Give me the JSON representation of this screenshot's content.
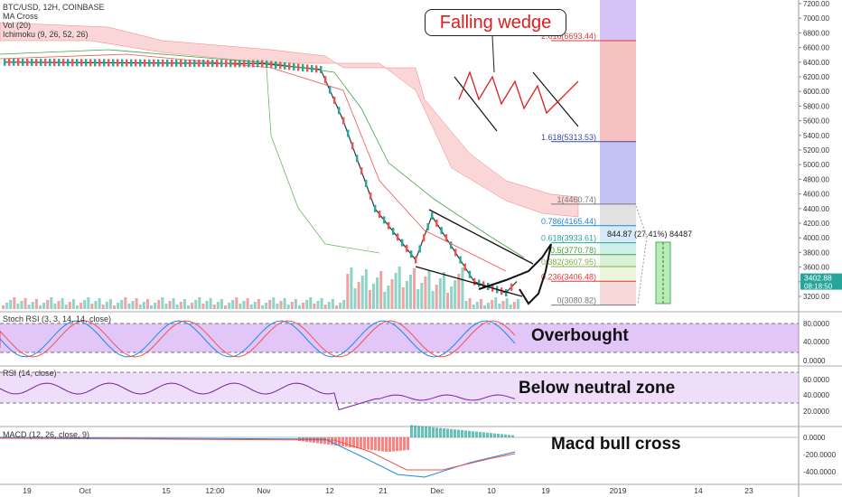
{
  "header": {
    "symbol": "BTC/USD, 12H, COINBASE",
    "ma_cross": "MA Cross",
    "vol": "Vol (20)",
    "ichimoku": "Ichimoku (9, 26, 52, 26)"
  },
  "panes": {
    "stoch_label": "Stoch RSI (3, 3, 14, 14, close)",
    "rsi_label": "RSI (14, close)",
    "macd_label": "MACD (12, 26, close, 9)"
  },
  "annotations": {
    "falling_wedge": "Falling wedge",
    "overbought": "Overbought",
    "below_neutral": "Below neutral zone",
    "macd_bull": "Macd bull cross",
    "measure": "844.87 (27.41%) 84487"
  },
  "price_label": {
    "value": "3402.88",
    "timer": "08:18:50"
  },
  "chart_data": {
    "type": "candlestick",
    "title": "BTC/USD, 12H, COINBASE",
    "price_axis": {
      "ticks": [
        7200,
        7000,
        6800,
        6600,
        6400,
        6200,
        6000,
        5800,
        5600,
        5400,
        5200,
        5000,
        4800,
        4600,
        4400,
        4200,
        4000,
        3800,
        3600,
        3400,
        3200
      ],
      "range": [
        3050,
        7260
      ]
    },
    "x_axis": {
      "ticks": [
        "19",
        "Oct",
        "15",
        "12:00",
        "Nov",
        "12",
        "21",
        "Dec",
        "10",
        "19",
        "2019",
        "14",
        "23"
      ]
    },
    "fib_levels": [
      {
        "ratio": "2.618",
        "price": 6693.44,
        "label": "2.618(6693.44)",
        "color": "#e53935"
      },
      {
        "ratio": "1.618",
        "price": 5313.53,
        "label": "1.618(5313.53)",
        "color": "#3949ab"
      },
      {
        "ratio": "1",
        "price": 4460.74,
        "label": "1(4460.74)",
        "color": "#787878"
      },
      {
        "ratio": "0.786",
        "price": 4165.44,
        "label": "0.786(4165.44)",
        "color": "#1e88e5"
      },
      {
        "ratio": "0.618",
        "price": 3933.61,
        "label": "0.618(3933.61)",
        "color": "#26a69a"
      },
      {
        "ratio": "0.5",
        "price": 3770.78,
        "label": "0.5(3770.78)",
        "color": "#43a047"
      },
      {
        "ratio": "0.382",
        "price": 3607.95,
        "label": "0.382(3607.95)",
        "color": "#7cb342"
      },
      {
        "ratio": "0.236",
        "price": 3406.48,
        "label": "0.236(3406.48)",
        "color": "#e53935"
      },
      {
        "ratio": "0",
        "price": 3080.82,
        "label": "0(3080.82)",
        "color": "#787878"
      }
    ],
    "key_prices": [
      {
        "date": "Sep 19",
        "price": 6400
      },
      {
        "date": "Nov 1",
        "price": 6380
      },
      {
        "date": "Nov 14",
        "price": 6300
      },
      {
        "date": "Nov 15",
        "price": 5600
      },
      {
        "date": "Nov 20",
        "price": 4400
      },
      {
        "date": "Nov 25",
        "price": 3700
      },
      {
        "date": "Nov 29",
        "price": 4300
      },
      {
        "date": "Dec 7",
        "price": 3400
      },
      {
        "date": "Dec 15",
        "price": 3250
      },
      {
        "date": "Dec 17",
        "price": 3402.88
      }
    ],
    "stoch_rsi": {
      "ticks": [
        80,
        40,
        0
      ],
      "bands": [
        80,
        20
      ],
      "label": "Stoch RSI (3, 3, 14, 14, close)"
    },
    "rsi": {
      "ticks": [
        60,
        40,
        20
      ],
      "bands": [
        70,
        30
      ],
      "label": "RSI (14, close)"
    },
    "macd": {
      "ticks": [
        0,
        -200,
        -400
      ],
      "label": "MACD (12, 26, close, 9)"
    }
  }
}
